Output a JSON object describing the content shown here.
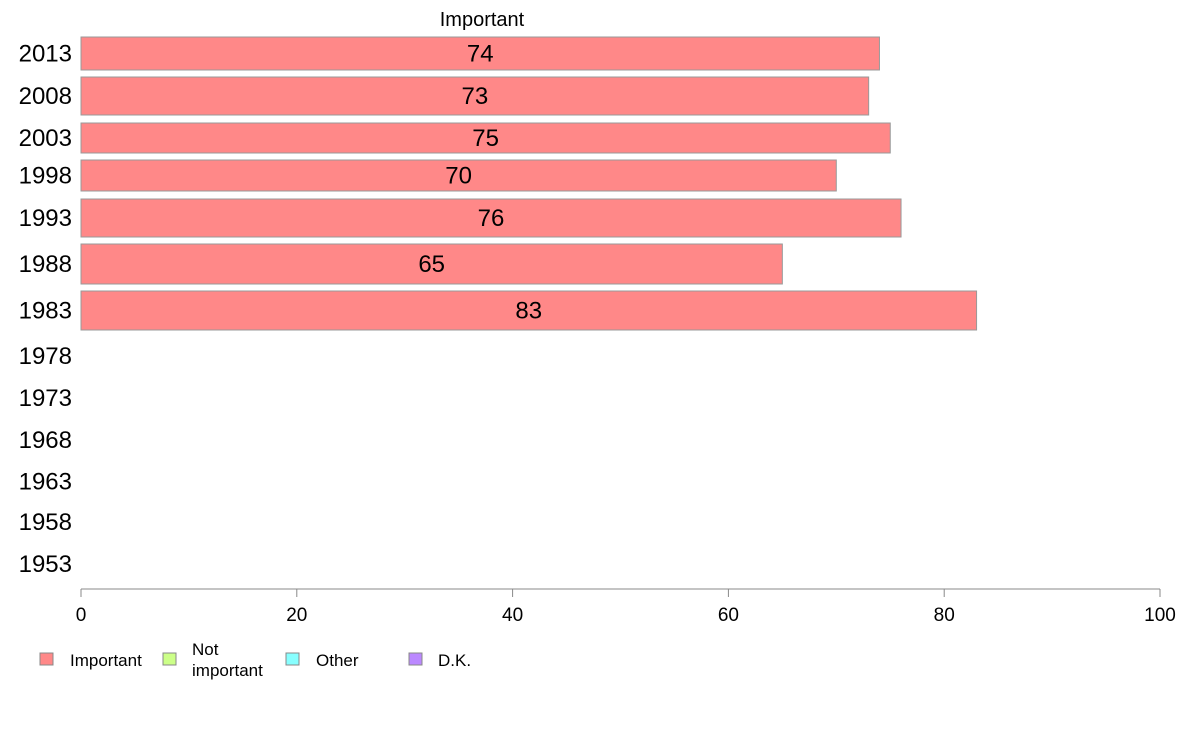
{
  "chart_data": {
    "type": "bar",
    "orientation": "horizontal",
    "title": "",
    "xlabel": "",
    "ylabel": "",
    "categories": [
      "2013",
      "2008",
      "2003",
      "1998",
      "1993",
      "1988",
      "1983",
      "1978",
      "1973",
      "1968",
      "1963",
      "1958",
      "1953"
    ],
    "series": [
      {
        "name": "Important",
        "color": "#ff8888",
        "values": [
          74,
          73,
          75,
          70,
          76,
          65,
          83,
          null,
          null,
          null,
          null,
          null,
          null
        ]
      }
    ],
    "xlim": [
      0,
      100
    ],
    "xticks": [
      0,
      20,
      40,
      60,
      80,
      100
    ],
    "grid": false,
    "legend_position": "bottom-left",
    "legend": [
      {
        "label": "Important",
        "color": "#ff8888"
      },
      {
        "label": "Not important",
        "color": "#ccff88"
      },
      {
        "label": "Other",
        "color": "#88ffff"
      },
      {
        "label": "D.K.",
        "color": "#bb88ff"
      }
    ]
  }
}
